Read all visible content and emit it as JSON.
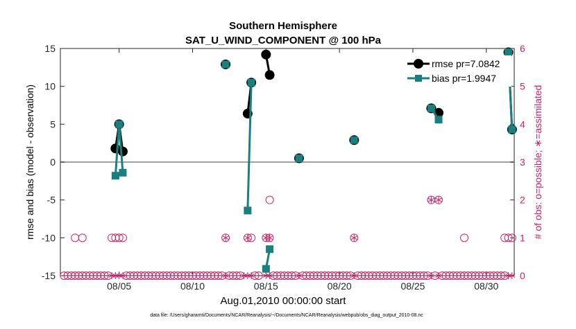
{
  "chart_data": {
    "type": "line",
    "title": "Southern Hemisphere",
    "subtitle": "SAT_U_WIND_COMPONENT @ 100 hPa",
    "xlabel": "Aug.01,2010 00:00:00 start",
    "ylabel": "rmse and bias (model - observation)",
    "y2label": "# of obs: o=possible; ∗=assimilated",
    "footnote": "data file: /Users/gharamti/Documents/NCAR/Reanalysis/~/Documents/NCAR/Reanalysis/webpub/obs_diag_output_2010-08.nc",
    "xlim": [
      1.0,
      31.9
    ],
    "ylim": [
      -15,
      15
    ],
    "y2lim": [
      0,
      6
    ],
    "xticks": [
      5,
      10,
      15,
      20,
      25,
      30
    ],
    "xticklabels": [
      "08/05",
      "08/10",
      "08/15",
      "08/20",
      "08/25",
      "08/30"
    ],
    "yticks": [
      -15,
      -10,
      -5,
      0,
      5,
      10,
      15
    ],
    "y2ticks": [
      0,
      1,
      2,
      3,
      4,
      5,
      6
    ],
    "grid": false,
    "legend_position": "top-right",
    "colors": {
      "rmse": "#000000",
      "bias": "#1a7f7f",
      "obs": "#d0206a",
      "zero_line": "#a0a0a0"
    },
    "series": [
      {
        "name": "rmse pr=7.0842",
        "segments": [
          [
            [
              4.75,
              1.8
            ],
            [
              5.0,
              5.0
            ],
            [
              5.25,
              1.4
            ]
          ],
          [
            [
              12.25,
              12.9
            ]
          ],
          [
            [
              13.75,
              6.4
            ],
            [
              14.0,
              10.5
            ]
          ],
          [
            [
              15.0,
              14.2
            ],
            [
              15.25,
              11.5
            ]
          ],
          [
            [
              17.25,
              0.5
            ]
          ],
          [
            [
              21.0,
              2.9
            ]
          ],
          [
            [
              26.25,
              7.1
            ],
            [
              26.75,
              6.5
            ]
          ],
          [
            [
              31.5,
              14.5
            ],
            [
              31.75,
              4.3
            ]
          ]
        ]
      },
      {
        "name": "bias pr=1.9947",
        "segments": [
          [
            [
              4.75,
              -1.8
            ],
            [
              5.0,
              5.0
            ],
            [
              5.25,
              -1.4
            ]
          ],
          [
            [
              12.25,
              12.9
            ]
          ],
          [
            [
              13.75,
              -6.4
            ],
            [
              14.0,
              10.5
            ]
          ],
          [
            [
              15.0,
              -14.1
            ],
            [
              15.25,
              -11.5
            ]
          ],
          [
            [
              17.25,
              0.5
            ]
          ],
          [
            [
              21.0,
              2.9
            ]
          ],
          [
            [
              26.25,
              7.1
            ],
            [
              26.75,
              5.6
            ]
          ],
          [
            [
              31.5,
              14.5
            ],
            [
              31.75,
              4.3
            ]
          ]
        ]
      }
    ],
    "obs_possible": [
      [
        1.25,
        0
      ],
      [
        1.5,
        0
      ],
      [
        1.75,
        0
      ],
      [
        2.0,
        0
      ],
      [
        2.25,
        0
      ],
      [
        2.5,
        0
      ],
      [
        2.75,
        0
      ],
      [
        3.0,
        0
      ],
      [
        3.25,
        0
      ],
      [
        3.5,
        0
      ],
      [
        3.75,
        0
      ],
      [
        4.0,
        0
      ],
      [
        4.25,
        0
      ],
      [
        5.5,
        0
      ],
      [
        5.75,
        0
      ],
      [
        6.0,
        0
      ],
      [
        6.25,
        0
      ],
      [
        6.5,
        0
      ],
      [
        6.75,
        0
      ],
      [
        7.0,
        0
      ],
      [
        7.25,
        0
      ],
      [
        7.5,
        0
      ],
      [
        7.75,
        0
      ],
      [
        8.0,
        0
      ],
      [
        8.25,
        0
      ],
      [
        8.5,
        0
      ],
      [
        8.75,
        0
      ],
      [
        9.0,
        0
      ],
      [
        9.25,
        0
      ],
      [
        9.5,
        0
      ],
      [
        9.75,
        0
      ],
      [
        10.0,
        0
      ],
      [
        10.25,
        0
      ],
      [
        10.5,
        0
      ],
      [
        10.75,
        0
      ],
      [
        11.0,
        0
      ],
      [
        11.25,
        0
      ],
      [
        11.5,
        0
      ],
      [
        11.75,
        0
      ],
      [
        12.0,
        0
      ],
      [
        12.5,
        0
      ],
      [
        12.75,
        0
      ],
      [
        13.0,
        0
      ],
      [
        13.25,
        0
      ],
      [
        14.25,
        0
      ],
      [
        14.5,
        0
      ],
      [
        15.5,
        0
      ],
      [
        15.75,
        0
      ],
      [
        16.0,
        0
      ],
      [
        16.25,
        0
      ],
      [
        16.5,
        0
      ],
      [
        16.75,
        0
      ],
      [
        17.0,
        0
      ],
      [
        17.5,
        0
      ],
      [
        17.75,
        0
      ],
      [
        18.0,
        0
      ],
      [
        18.25,
        0
      ],
      [
        18.5,
        0
      ],
      [
        18.75,
        0
      ],
      [
        19.0,
        0
      ],
      [
        19.25,
        0
      ],
      [
        19.5,
        0
      ],
      [
        19.75,
        0
      ],
      [
        20.0,
        0
      ],
      [
        20.25,
        0
      ],
      [
        20.5,
        0
      ],
      [
        20.75,
        0
      ],
      [
        21.25,
        0
      ],
      [
        21.5,
        0
      ],
      [
        21.75,
        0
      ],
      [
        22.0,
        0
      ],
      [
        22.25,
        0
      ],
      [
        22.5,
        0
      ],
      [
        22.75,
        0
      ],
      [
        23.0,
        0
      ],
      [
        23.25,
        0
      ],
      [
        23.5,
        0
      ],
      [
        23.75,
        0
      ],
      [
        24.0,
        0
      ],
      [
        24.25,
        0
      ],
      [
        24.5,
        0
      ],
      [
        24.75,
        0
      ],
      [
        25.0,
        0
      ],
      [
        25.25,
        0
      ],
      [
        25.5,
        0
      ],
      [
        25.75,
        0
      ],
      [
        26.0,
        0
      ],
      [
        26.5,
        0
      ],
      [
        27.0,
        0
      ],
      [
        27.25,
        0
      ],
      [
        27.5,
        0
      ],
      [
        27.75,
        0
      ],
      [
        28.0,
        0
      ],
      [
        28.25,
        0
      ],
      [
        28.5,
        0
      ],
      [
        28.75,
        0
      ],
      [
        29.0,
        0
      ],
      [
        29.25,
        0
      ],
      [
        29.5,
        0
      ],
      [
        29.75,
        0
      ],
      [
        30.0,
        0
      ],
      [
        30.25,
        0
      ],
      [
        30.5,
        0
      ],
      [
        30.75,
        0
      ],
      [
        31.0,
        0
      ],
      [
        31.25,
        0
      ],
      [
        2.0,
        1
      ],
      [
        2.5,
        1
      ],
      [
        4.5,
        1
      ],
      [
        4.75,
        1
      ],
      [
        5.0,
        1
      ],
      [
        5.25,
        1
      ],
      [
        12.25,
        1
      ],
      [
        13.75,
        1
      ],
      [
        14.0,
        1
      ],
      [
        15.0,
        1
      ],
      [
        15.25,
        1
      ],
      [
        21.0,
        1
      ],
      [
        28.5,
        1
      ],
      [
        31.25,
        1
      ],
      [
        31.5,
        1
      ],
      [
        31.75,
        1
      ],
      [
        15.25,
        2
      ],
      [
        26.25,
        2
      ],
      [
        26.75,
        2
      ]
    ],
    "obs_assimilated": [
      [
        4.5,
        0
      ],
      [
        4.75,
        0
      ],
      [
        5.0,
        0
      ],
      [
        5.25,
        0
      ],
      [
        12.25,
        0
      ],
      [
        13.5,
        0
      ],
      [
        13.75,
        0
      ],
      [
        14.0,
        0
      ],
      [
        15.0,
        0
      ],
      [
        15.25,
        0
      ],
      [
        17.25,
        0
      ],
      [
        21.0,
        0
      ],
      [
        26.25,
        0
      ],
      [
        26.75,
        0
      ],
      [
        31.5,
        0
      ],
      [
        31.75,
        0
      ],
      [
        12.25,
        1
      ],
      [
        13.75,
        1
      ],
      [
        15.0,
        1
      ],
      [
        15.25,
        1
      ],
      [
        21.0,
        1
      ],
      [
        26.25,
        2
      ],
      [
        26.75,
        2
      ]
    ]
  }
}
